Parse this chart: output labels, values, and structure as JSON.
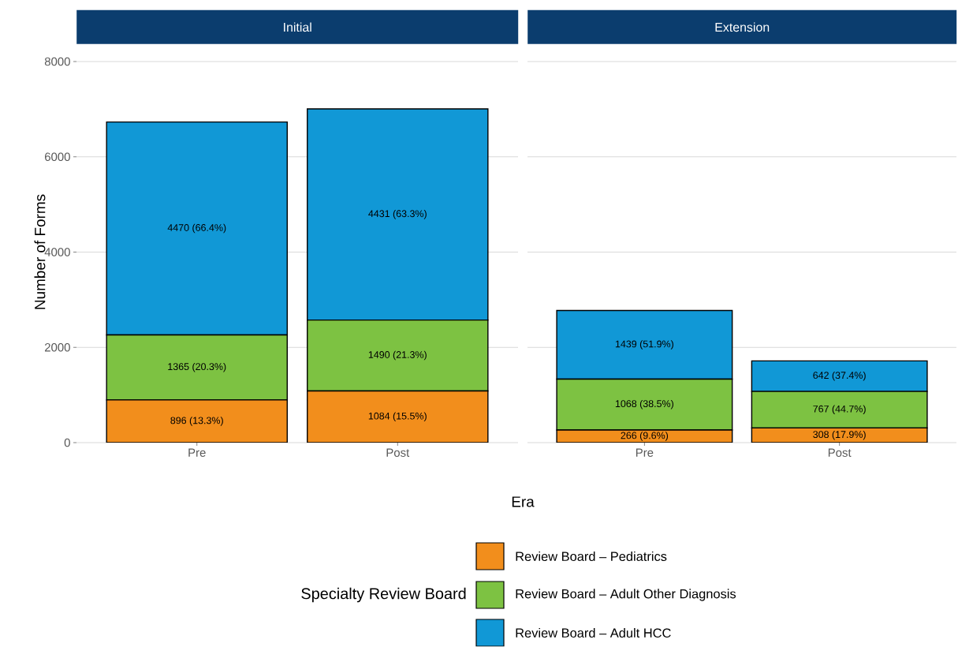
{
  "chart_data": [
    {
      "type": "bar",
      "title": "Initial",
      "xlabel": "Era",
      "ylabel": "Number of Forms",
      "legend_title": "Specialty Review Board",
      "legend": "bottom",
      "stacked": true,
      "grid": "y",
      "categories": [
        "Pre",
        "Post"
      ],
      "ylim": [
        0,
        8000
      ],
      "yticks": [
        0,
        2000,
        4000,
        6000,
        8000
      ],
      "series": [
        {
          "name": "Review Board – Pediatrics",
          "color": "#f28e1c",
          "values": [
            896,
            1084
          ],
          "value_labels": [
            "896 (13.3%)",
            "1084 (15.5%)"
          ]
        },
        {
          "name": "Review Board – Adult Other Diagnosis",
          "color": "#7dc242",
          "values": [
            1365,
            1490
          ],
          "value_labels": [
            "1365 (20.3%)",
            "1490 (21.3%)"
          ]
        },
        {
          "name": "Review Board – Adult HCC",
          "color": "#1198d6",
          "values": [
            4470,
            4431
          ],
          "value_labels": [
            "4470 (66.4%)",
            "4431 (63.3%)"
          ]
        }
      ]
    },
    {
      "type": "bar",
      "title": "Extension",
      "stacked": true,
      "grid": "y",
      "tick_labels": "x",
      "categories": [
        "Pre",
        "Post"
      ],
      "ylim": [
        0,
        8000
      ],
      "yticks": [
        0,
        2000,
        4000,
        6000,
        8000
      ],
      "series": [
        {
          "color": "#f28e1c",
          "values": [
            266,
            308
          ],
          "value_labels": [
            "266 (9.6%)",
            "308 (17.9%)"
          ]
        },
        {
          "color": "#7dc242",
          "values": [
            1068,
            767
          ],
          "value_labels": [
            "1068 (38.5%)",
            "767 (44.7%)"
          ]
        },
        {
          "color": "#1198d6",
          "values": [
            1439,
            642
          ],
          "value_labels": [
            "1439 (51.9%)",
            "642 (37.4%)"
          ]
        }
      ]
    }
  ]
}
